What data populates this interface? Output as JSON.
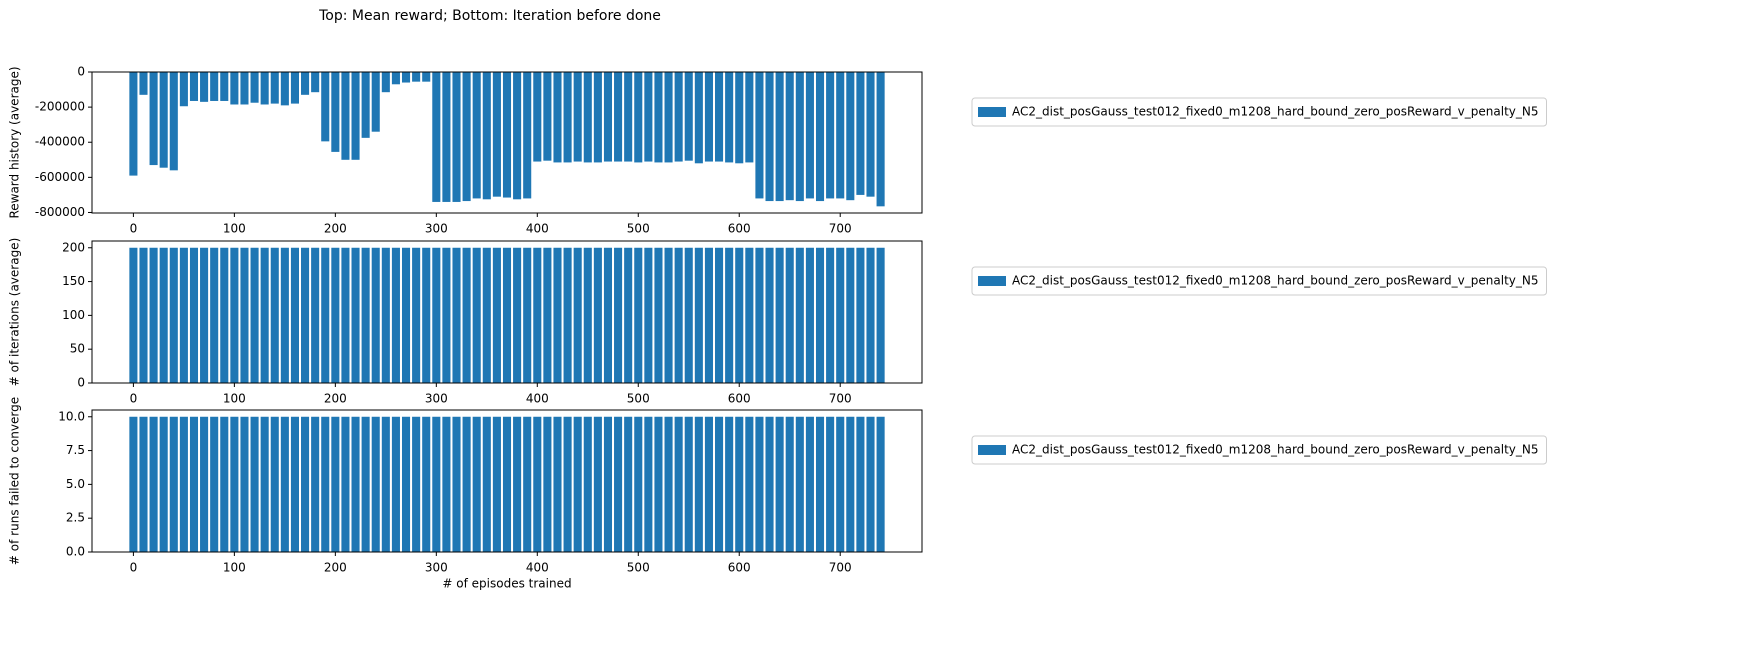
{
  "title": "Top: Mean reward; Bottom: Iteration before done",
  "chart_data": [
    {
      "type": "bar",
      "ylabel": "Reward history (average)",
      "xlim": [
        -41,
        781
      ],
      "xticks": [
        0,
        100,
        200,
        300,
        400,
        500,
        600,
        700
      ],
      "ylim": [
        -803000,
        0
      ],
      "yticks": [
        -800000,
        -600000,
        -400000,
        -200000,
        0
      ],
      "legend": "upper left outside",
      "x": [
        0,
        10,
        20,
        30,
        40,
        50,
        60,
        70,
        80,
        90,
        100,
        110,
        120,
        130,
        140,
        150,
        160,
        170,
        180,
        190,
        200,
        210,
        220,
        230,
        240,
        250,
        260,
        270,
        280,
        290,
        300,
        310,
        320,
        330,
        340,
        350,
        360,
        370,
        380,
        390,
        400,
        410,
        420,
        430,
        440,
        450,
        460,
        470,
        480,
        490,
        500,
        510,
        520,
        530,
        540,
        550,
        560,
        570,
        580,
        590,
        600,
        610,
        620,
        630,
        640,
        650,
        660,
        670,
        680,
        690,
        700,
        710,
        720,
        730,
        740
      ],
      "series": [
        {
          "name": "AC2_dist_posGauss_test012_fixed0_m1208_hard_bound_zero_posReward_v_penalty_N5",
          "color": "#1f77b4",
          "values": [
            -590000,
            -130000,
            -530000,
            -545000,
            -560000,
            -195000,
            -165000,
            -170000,
            -165000,
            -165000,
            -185000,
            -185000,
            -175000,
            -185000,
            -180000,
            -190000,
            -180000,
            -130000,
            -115000,
            -395000,
            -455000,
            -500000,
            -500000,
            -375000,
            -340000,
            -115000,
            -70000,
            -60000,
            -55000,
            -55000,
            -740000,
            -740000,
            -740000,
            -735000,
            -720000,
            -725000,
            -710000,
            -715000,
            -725000,
            -720000,
            -510000,
            -505000,
            -515000,
            -515000,
            -510000,
            -515000,
            -515000,
            -510000,
            -510000,
            -510000,
            -515000,
            -510000,
            -515000,
            -515000,
            -510000,
            -505000,
            -520000,
            -510000,
            -510000,
            -515000,
            -520000,
            -515000,
            -720000,
            -735000,
            -735000,
            -730000,
            -735000,
            -720000,
            -735000,
            -720000,
            -720000,
            -730000,
            -700000,
            -710000,
            -765000
          ]
        }
      ]
    },
    {
      "type": "bar",
      "ylabel": "# of iterations (average)",
      "xlim": [
        -41,
        781
      ],
      "xticks": [
        0,
        100,
        200,
        300,
        400,
        500,
        600,
        700
      ],
      "ylim": [
        0,
        210
      ],
      "yticks": [
        0,
        50,
        100,
        150,
        200
      ],
      "legend": "upper left outside",
      "x": [
        0,
        10,
        20,
        30,
        40,
        50,
        60,
        70,
        80,
        90,
        100,
        110,
        120,
        130,
        140,
        150,
        160,
        170,
        180,
        190,
        200,
        210,
        220,
        230,
        240,
        250,
        260,
        270,
        280,
        290,
        300,
        310,
        320,
        330,
        340,
        350,
        360,
        370,
        380,
        390,
        400,
        410,
        420,
        430,
        440,
        450,
        460,
        470,
        480,
        490,
        500,
        510,
        520,
        530,
        540,
        550,
        560,
        570,
        580,
        590,
        600,
        610,
        620,
        630,
        640,
        650,
        660,
        670,
        680,
        690,
        700,
        710,
        720,
        730,
        740
      ],
      "series": [
        {
          "name": "AC2_dist_posGauss_test012_fixed0_m1208_hard_bound_zero_posReward_v_penalty_N5",
          "color": "#1f77b4",
          "values": [
            200,
            200,
            200,
            200,
            200,
            200,
            200,
            200,
            200,
            200,
            200,
            200,
            200,
            200,
            200,
            200,
            200,
            200,
            200,
            200,
            200,
            200,
            200,
            200,
            200,
            200,
            200,
            200,
            200,
            200,
            200,
            200,
            200,
            200,
            200,
            200,
            200,
            200,
            200,
            200,
            200,
            200,
            200,
            200,
            200,
            200,
            200,
            200,
            200,
            200,
            200,
            200,
            200,
            200,
            200,
            200,
            200,
            200,
            200,
            200,
            200,
            200,
            200,
            200,
            200,
            200,
            200,
            200,
            200,
            200,
            200,
            200,
            200,
            200,
            200
          ]
        }
      ]
    },
    {
      "type": "bar",
      "ylabel": "# of runs failed to converge",
      "xlabel": "# of episodes trained",
      "xlim": [
        -41,
        781
      ],
      "xticks": [
        0,
        100,
        200,
        300,
        400,
        500,
        600,
        700
      ],
      "ylim": [
        0,
        10.5
      ],
      "yticks": [
        {
          "value": 0,
          "label": "0.0"
        },
        2.5,
        {
          "value": 5,
          "label": "5.0"
        },
        7.5,
        {
          "value": 10,
          "label": "10.0"
        }
      ],
      "legend": "upper left outside",
      "x": [
        0,
        10,
        20,
        30,
        40,
        50,
        60,
        70,
        80,
        90,
        100,
        110,
        120,
        130,
        140,
        150,
        160,
        170,
        180,
        190,
        200,
        210,
        220,
        230,
        240,
        250,
        260,
        270,
        280,
        290,
        300,
        310,
        320,
        330,
        340,
        350,
        360,
        370,
        380,
        390,
        400,
        410,
        420,
        430,
        440,
        450,
        460,
        470,
        480,
        490,
        500,
        510,
        520,
        530,
        540,
        550,
        560,
        570,
        580,
        590,
        600,
        610,
        620,
        630,
        640,
        650,
        660,
        670,
        680,
        690,
        700,
        710,
        720,
        730,
        740
      ],
      "series": [
        {
          "name": "AC2_dist_posGauss_test012_fixed0_m1208_hard_bound_zero_posReward_v_penalty_N5",
          "color": "#1f77b4",
          "values": [
            10,
            10,
            10,
            10,
            10,
            10,
            10,
            10,
            10,
            10,
            10,
            10,
            10,
            10,
            10,
            10,
            10,
            10,
            10,
            10,
            10,
            10,
            10,
            10,
            10,
            10,
            10,
            10,
            10,
            10,
            10,
            10,
            10,
            10,
            10,
            10,
            10,
            10,
            10,
            10,
            10,
            10,
            10,
            10,
            10,
            10,
            10,
            10,
            10,
            10,
            10,
            10,
            10,
            10,
            10,
            10,
            10,
            10,
            10,
            10,
            10,
            10,
            10,
            10,
            10,
            10,
            10,
            10,
            10,
            10,
            10,
            10,
            10,
            10,
            10
          ]
        }
      ]
    }
  ]
}
